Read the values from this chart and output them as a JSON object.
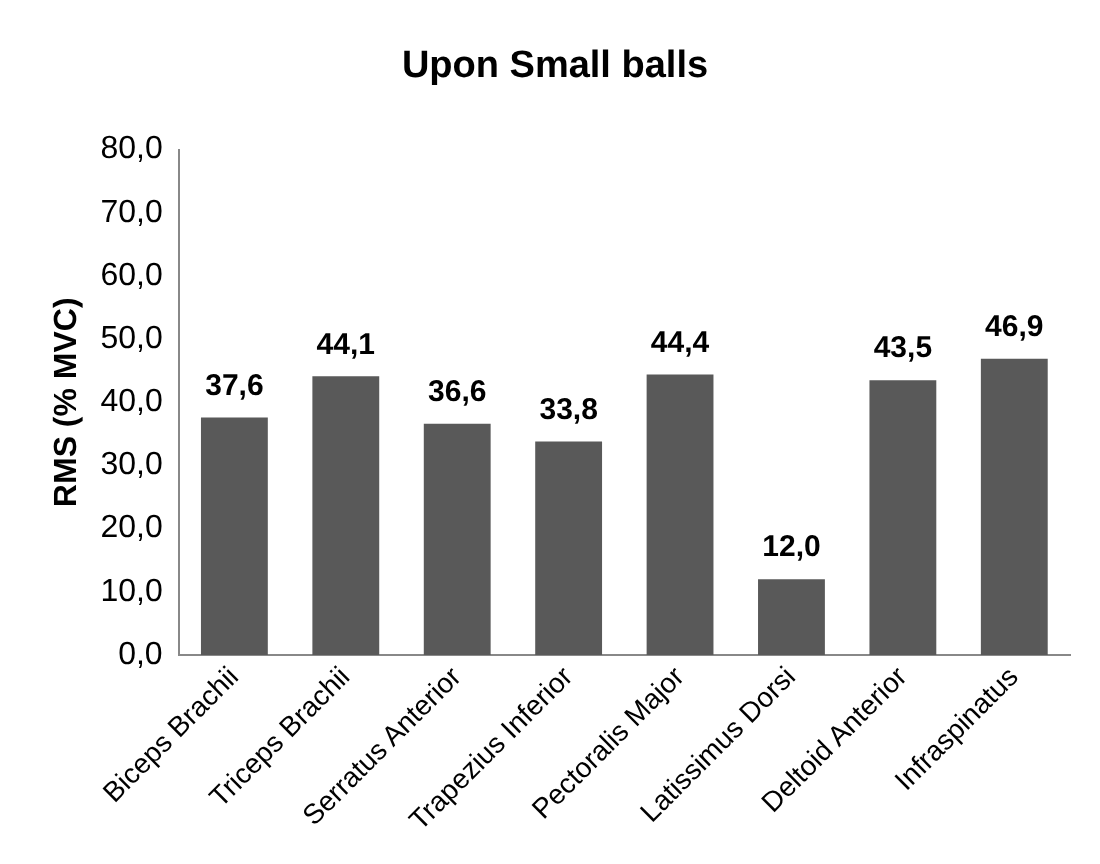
{
  "chart_data": {
    "type": "bar",
    "title": "Upon Small balls",
    "ylabel": "RMS (% MVC)",
    "categories": [
      "Biceps Brachii",
      "Triceps Brachii",
      "Serratus Anterior",
      "Trapezius Inferior",
      "Pectoralis Major",
      "Latissimus Dorsi",
      "Deltoid Anterior",
      "Infraspinatus"
    ],
    "values": [
      37.6,
      44.1,
      36.6,
      33.8,
      44.4,
      12.0,
      43.5,
      46.9
    ],
    "value_labels": [
      "37,6",
      "44,1",
      "36,6",
      "33,8",
      "44,4",
      "12,0",
      "43,5",
      "46,9"
    ],
    "color": "#595959",
    "ylim": [
      0,
      80
    ],
    "yticks": [
      {
        "value": 0,
        "label": "0,0"
      },
      {
        "value": 10,
        "label": "10,0"
      },
      {
        "value": 20,
        "label": "20,0"
      },
      {
        "value": 30,
        "label": "30,0"
      },
      {
        "value": 40,
        "label": "40,0"
      },
      {
        "value": 50,
        "label": "50,0"
      },
      {
        "value": 60,
        "label": "60,0"
      },
      {
        "value": 70,
        "label": "70,0"
      },
      {
        "value": 80,
        "label": "80,0"
      }
    ],
    "grid": false,
    "legend": false
  }
}
